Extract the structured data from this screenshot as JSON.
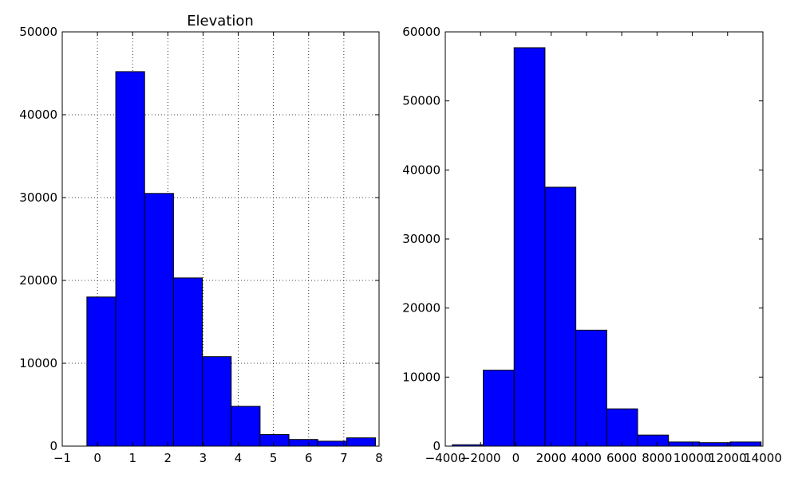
{
  "chart_data": [
    {
      "type": "bar",
      "title": "Elevation",
      "xlabel": "",
      "ylabel": "",
      "bar_color": "#0000ff",
      "edge_color": "#000000",
      "grid": true,
      "xlim": [
        -1,
        8
      ],
      "ylim": [
        0,
        50000
      ],
      "xticks": [
        {
          "value": -1,
          "label": "−1"
        },
        {
          "value": 0,
          "label": "0"
        },
        {
          "value": 1,
          "label": "1"
        },
        {
          "value": 2,
          "label": "2"
        },
        {
          "value": 3,
          "label": "3"
        },
        {
          "value": 4,
          "label": "4"
        },
        {
          "value": 5,
          "label": "5"
        },
        {
          "value": 6,
          "label": "6"
        },
        {
          "value": 7,
          "label": "7"
        },
        {
          "value": 8,
          "label": "8"
        }
      ],
      "yticks": [
        {
          "value": 0,
          "label": "0"
        },
        {
          "value": 10000,
          "label": "10000"
        },
        {
          "value": 20000,
          "label": "20000"
        },
        {
          "value": 30000,
          "label": "30000"
        },
        {
          "value": 40000,
          "label": "40000"
        },
        {
          "value": 50000,
          "label": "50000"
        }
      ],
      "bin_edges": [
        -0.3,
        0.52,
        1.34,
        2.16,
        2.98,
        3.8,
        4.62,
        5.44,
        6.26,
        7.08,
        7.9
      ],
      "values": [
        18000,
        45200,
        30500,
        20300,
        10800,
        4800,
        1400,
        800,
        600,
        1000
      ]
    },
    {
      "type": "bar",
      "title": "",
      "xlabel": "",
      "ylabel": "",
      "bar_color": "#0000ff",
      "edge_color": "#000000",
      "grid": false,
      "xlim": [
        -4000,
        14000
      ],
      "ylim": [
        0,
        60000
      ],
      "xticks": [
        {
          "value": -4000,
          "label": "−4000"
        },
        {
          "value": -2000,
          "label": "−2000"
        },
        {
          "value": 0,
          "label": "0"
        },
        {
          "value": 2000,
          "label": "2000"
        },
        {
          "value": 4000,
          "label": "4000"
        },
        {
          "value": 6000,
          "label": "6000"
        },
        {
          "value": 8000,
          "label": "8000"
        },
        {
          "value": 10000,
          "label": "10000"
        },
        {
          "value": 12000,
          "label": "12000"
        },
        {
          "value": 14000,
          "label": "14000"
        }
      ],
      "yticks": [
        {
          "value": 0,
          "label": "0"
        },
        {
          "value": 10000,
          "label": "10000"
        },
        {
          "value": 20000,
          "label": "20000"
        },
        {
          "value": 30000,
          "label": "30000"
        },
        {
          "value": 40000,
          "label": "40000"
        },
        {
          "value": 50000,
          "label": "50000"
        },
        {
          "value": 60000,
          "label": "60000"
        }
      ],
      "bin_edges": [
        -3600,
        -1850,
        -100,
        1650,
        3400,
        5150,
        6900,
        8650,
        10400,
        12150,
        13900
      ],
      "values": [
        200,
        11000,
        57700,
        37500,
        16800,
        5400,
        1600,
        600,
        500,
        600
      ]
    }
  ]
}
